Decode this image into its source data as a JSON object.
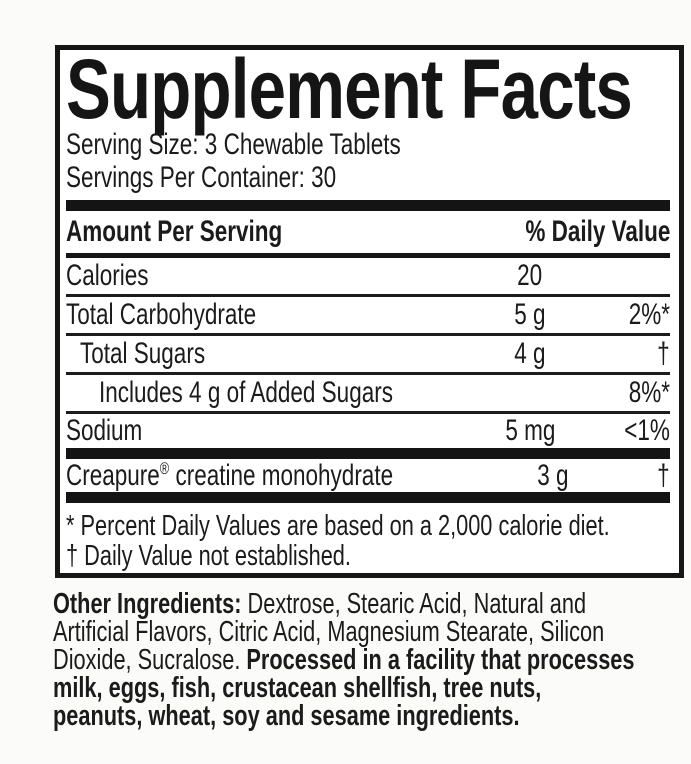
{
  "colors": {
    "ink": "#1b1b1b",
    "panel_bg": "#ffffff",
    "page_bg": "#fbfbfa",
    "rule": "#161616"
  },
  "panel": {
    "title": "Supplement Facts",
    "serving_size": "Serving Size: 3 Chewable Tablets",
    "servings_per_container": "Servings Per Container: 30",
    "columns": {
      "amount_header": "Amount Per Serving",
      "dv_header": "% Daily Value"
    },
    "rows": [
      {
        "name": "Calories",
        "amount": "20",
        "dv": ""
      },
      {
        "name": "Total Carbohydrate",
        "amount": "5 g",
        "dv": "2%*"
      },
      {
        "name": "Total Sugars",
        "amount": "4 g",
        "dv": "†"
      },
      {
        "name": "Includes 4 g of Added Sugars",
        "amount": "",
        "dv": "8%*"
      },
      {
        "name": "Sodium",
        "amount": "5 mg",
        "dv": "<1%"
      },
      {
        "name_brand": "Creapure",
        "name_mark": "®",
        "name_rest": " creatine monohydrate",
        "amount": "3 g",
        "dv": "†"
      }
    ],
    "footnotes": [
      "* Percent Daily Values are based on a 2,000 calorie diet.",
      "† Daily Value not established."
    ]
  },
  "other_ingredients": {
    "label": "Other Ingredients:",
    "line1_rest": " Dextrose, Stearic Acid, Natural and",
    "line2": "Artificial Flavors, Citric Acid, Magnesium Stearate, Silicon",
    "line3_regular": "Dioxide, Sucralose. ",
    "line3_bold": "Processed in a facility that processes",
    "line4_bold": "milk, eggs, fish, crustacean shellfish, tree nuts,",
    "line5_bold": "peanuts, wheat, soy and sesame ingredients."
  }
}
